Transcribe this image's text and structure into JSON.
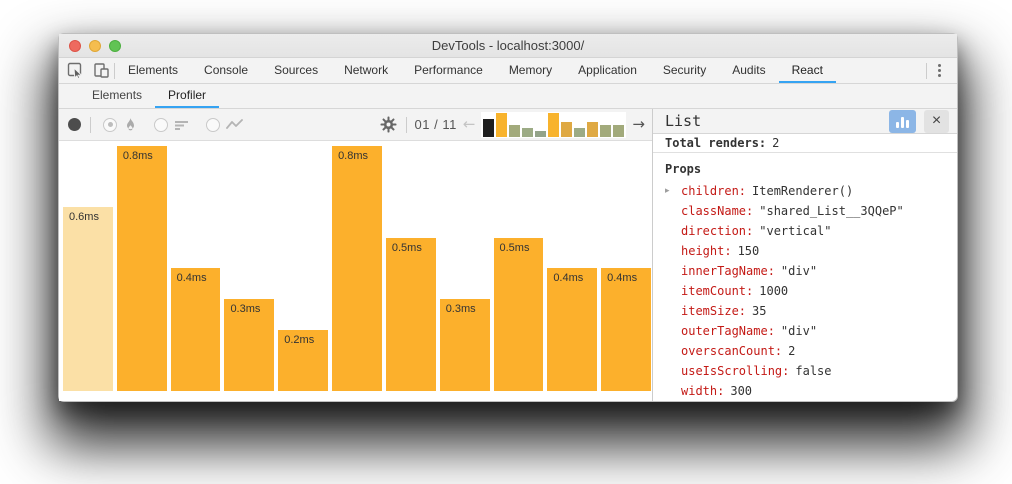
{
  "window": {
    "title": "DevTools - localhost:3000/"
  },
  "traffic_lights": [
    "close",
    "minimize",
    "zoom"
  ],
  "tabs": {
    "items": [
      "Elements",
      "Console",
      "Sources",
      "Network",
      "Performance",
      "Memory",
      "Application",
      "Security",
      "Audits",
      "React"
    ],
    "selected": "React"
  },
  "subtabs": {
    "items": [
      "Elements",
      "Profiler"
    ],
    "selected": "Profiler"
  },
  "toolbar": {
    "snapshot_index": "01 / 11",
    "icons": [
      "record-icon",
      "flamegraph-radio",
      "flame-icon",
      "ranked-radio",
      "ranked-icon",
      "interactions-radio",
      "line-chart-icon",
      "gear-icon"
    ],
    "prev_arrow": "←",
    "next_arrow": "→"
  },
  "chart_data": {
    "type": "bar",
    "title": "",
    "xlabel": "",
    "ylabel": "",
    "unit": "ms",
    "values": [
      0.6,
      0.8,
      0.4,
      0.3,
      0.2,
      0.8,
      0.5,
      0.3,
      0.5,
      0.4,
      0.4
    ],
    "labels": [
      "0.6ms",
      "0.8ms",
      "0.4ms",
      "0.3ms",
      "0.2ms",
      "0.8ms",
      "0.5ms",
      "0.3ms",
      "0.5ms",
      "0.4ms",
      "0.4ms"
    ],
    "selected_index": 0,
    "ylim": [
      0,
      0.8
    ],
    "grid": false,
    "legend": false,
    "bar_color": "#fcb02c",
    "selected_bar_color": "#fbe0a6",
    "minichart": {
      "values": [
        0.6,
        0.8,
        0.4,
        0.3,
        0.2,
        0.8,
        0.5,
        0.3,
        0.5,
        0.4,
        0.4
      ],
      "colors": [
        "#1f1f1f",
        "#f8b32c",
        "#a2aa7b",
        "#9cab85",
        "#93a389",
        "#f8b32c",
        "#dfa943",
        "#9cab85",
        "#dfa943",
        "#a2aa7b",
        "#a2aa7b"
      ],
      "selected_index": 0
    }
  },
  "panel": {
    "title": "List",
    "total_renders_label": "Total renders:",
    "total_renders": "2",
    "props_label": "Props",
    "expand_glyph": "▸",
    "close_glyph": "×",
    "props": [
      {
        "key": "children",
        "value": "ItemRenderer()",
        "expandable": true
      },
      {
        "key": "className",
        "value": "\"shared_List__3QQeP\"",
        "expandable": false
      },
      {
        "key": "direction",
        "value": "\"vertical\"",
        "expandable": false
      },
      {
        "key": "height",
        "value": "150",
        "expandable": false
      },
      {
        "key": "innerTagName",
        "value": "\"div\"",
        "expandable": false
      },
      {
        "key": "itemCount",
        "value": "1000",
        "expandable": false
      },
      {
        "key": "itemSize",
        "value": "35",
        "expandable": false
      },
      {
        "key": "outerTagName",
        "value": "\"div\"",
        "expandable": false
      },
      {
        "key": "overscanCount",
        "value": "2",
        "expandable": false
      },
      {
        "key": "useIsScrolling",
        "value": "false",
        "expandable": false
      },
      {
        "key": "width",
        "value": "300",
        "expandable": false
      }
    ]
  }
}
